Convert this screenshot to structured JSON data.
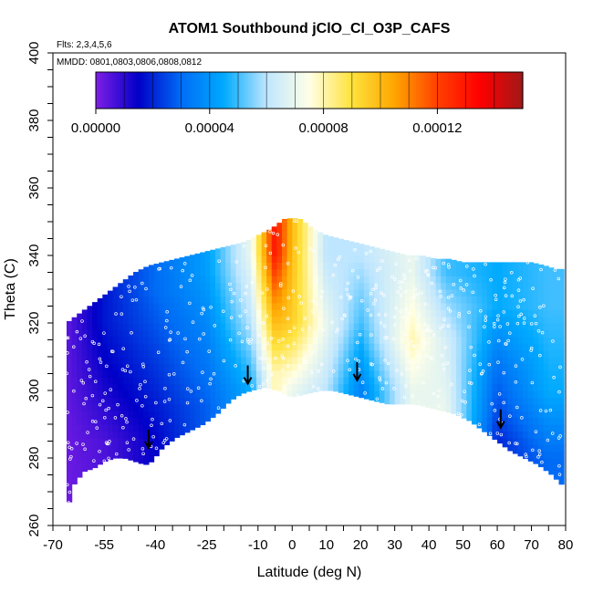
{
  "chart_data": {
    "type": "heatmap",
    "title": "ATOM1 Southbound jClO_Cl_O3P_CAFS",
    "annotations": [
      "Flts: 2,3,4,5,6",
      "MMDD: 0801,0803,0806,0808,0812"
    ],
    "xlabel": "Latitude (deg N)",
    "ylabel": "Theta (C)",
    "xlim": [
      -70,
      80
    ],
    "ylim": [
      260,
      400
    ],
    "xticks": [
      -70,
      -55,
      -40,
      -25,
      -10,
      0,
      10,
      20,
      30,
      40,
      50,
      60,
      70,
      80
    ],
    "xtick_labels": [
      "-70",
      "-55",
      "-40",
      "-25",
      "-10",
      "0",
      "10",
      "20",
      "30",
      "40",
      "50",
      "60",
      "70",
      "80"
    ],
    "yticks": [
      260,
      280,
      300,
      320,
      340,
      360,
      380,
      400
    ],
    "ytick_labels": [
      "260",
      "280",
      "300",
      "320",
      "340",
      "360",
      "380",
      "400"
    ],
    "colorbar": {
      "range": [
        0,
        0.00015
      ],
      "ticks": [
        0,
        4e-05,
        8e-05,
        0.00012
      ],
      "tick_labels": [
        "0.00000",
        "0.00004",
        "0.00008",
        "0.00012"
      ],
      "colors": [
        "#7f1fe6",
        "#0000c8",
        "#006cf5",
        "#00aaff",
        "#bfe6ff",
        "#ffffe6",
        "#ffe23c",
        "#ffa500",
        "#ff4000",
        "#ff0000",
        "#a01818"
      ]
    },
    "lower_boundary": [
      [
        -66,
        264
      ],
      [
        -64,
        272
      ],
      [
        -61,
        276
      ],
      [
        -58,
        277
      ],
      [
        -55,
        279
      ],
      [
        -52,
        280
      ],
      [
        -49,
        280
      ],
      [
        -46,
        279
      ],
      [
        -43,
        278
      ],
      [
        -41,
        279
      ],
      [
        -38,
        283
      ],
      [
        -34,
        286
      ],
      [
        -30,
        288
      ],
      [
        -26,
        290
      ],
      [
        -22,
        293
      ],
      [
        -18,
        297
      ],
      [
        -15,
        299
      ],
      [
        -12,
        300
      ],
      [
        -8,
        301
      ],
      [
        -4,
        300
      ],
      [
        0,
        298
      ],
      [
        4,
        299
      ],
      [
        8,
        300
      ],
      [
        12,
        300
      ],
      [
        16,
        299
      ],
      [
        20,
        298
      ],
      [
        24,
        297
      ],
      [
        28,
        296
      ],
      [
        32,
        296
      ],
      [
        36,
        296
      ],
      [
        40,
        295
      ],
      [
        44,
        294
      ],
      [
        48,
        293
      ],
      [
        52,
        291
      ],
      [
        56,
        288
      ],
      [
        60,
        285
      ],
      [
        64,
        282
      ],
      [
        68,
        280
      ],
      [
        72,
        278
      ],
      [
        76,
        275
      ],
      [
        79,
        272
      ]
    ],
    "upper_boundary": [
      [
        -66,
        320
      ],
      [
        -62,
        323
      ],
      [
        -58,
        326
      ],
      [
        -54,
        329
      ],
      [
        -50,
        332
      ],
      [
        -46,
        335
      ],
      [
        -42,
        337
      ],
      [
        -38,
        338
      ],
      [
        -34,
        339
      ],
      [
        -30,
        340
      ],
      [
        -26,
        341
      ],
      [
        -22,
        342
      ],
      [
        -18,
        343
      ],
      [
        -14,
        344
      ],
      [
        -10,
        346
      ],
      [
        -6,
        348
      ],
      [
        -2,
        351
      ],
      [
        2,
        351
      ],
      [
        6,
        348
      ],
      [
        10,
        346
      ],
      [
        14,
        345
      ],
      [
        18,
        344
      ],
      [
        22,
        343
      ],
      [
        26,
        342
      ],
      [
        30,
        341
      ],
      [
        34,
        340
      ],
      [
        38,
        340
      ],
      [
        42,
        339
      ],
      [
        46,
        339
      ],
      [
        50,
        338
      ],
      [
        54,
        338
      ],
      [
        58,
        338
      ],
      [
        62,
        338
      ],
      [
        66,
        338
      ],
      [
        70,
        338
      ],
      [
        74,
        337
      ],
      [
        77,
        336
      ]
    ],
    "value_field": [
      {
        "lat": -66,
        "theta": [
          [
            270,
            2e-06
          ],
          [
            290,
            3e-06
          ],
          [
            310,
            4e-06
          ]
        ]
      },
      {
        "lat": -55,
        "theta": [
          [
            285,
            6e-06
          ],
          [
            300,
            1.2e-05
          ],
          [
            320,
            1.8e-05
          ]
        ]
      },
      {
        "lat": -40,
        "theta": [
          [
            285,
            1.5e-05
          ],
          [
            300,
            2e-05
          ],
          [
            330,
            3e-05
          ]
        ]
      },
      {
        "lat": -25,
        "theta": [
          [
            295,
            2.8e-05
          ],
          [
            315,
            3.5e-05
          ],
          [
            335,
            4.2e-05
          ]
        ]
      },
      {
        "lat": -12,
        "theta": [
          [
            300,
            4.5e-05
          ],
          [
            320,
            6e-05
          ],
          [
            340,
            7e-05
          ]
        ]
      },
      {
        "lat": -5,
        "theta": [
          [
            305,
            8e-05
          ],
          [
            320,
            0.0001
          ],
          [
            341,
            0.00013
          ]
        ]
      },
      {
        "lat": 0,
        "theta": [
          [
            300,
            7e-05
          ],
          [
            320,
            9.5e-05
          ],
          [
            345,
            0.0001
          ]
        ]
      },
      {
        "lat": 10,
        "theta": [
          [
            300,
            6e-05
          ],
          [
            320,
            7e-05
          ],
          [
            340,
            6e-05
          ]
        ]
      },
      {
        "lat": 20,
        "theta": [
          [
            300,
            3.5e-05
          ],
          [
            320,
            5e-05
          ],
          [
            340,
            6e-05
          ]
        ]
      },
      {
        "lat": 35,
        "theta": [
          [
            300,
            7e-05
          ],
          [
            315,
            8e-05
          ],
          [
            335,
            7e-05
          ]
        ]
      },
      {
        "lat": 45,
        "theta": [
          [
            295,
            7e-05
          ],
          [
            315,
            6.5e-05
          ],
          [
            335,
            5e-05
          ]
        ]
      },
      {
        "lat": 60,
        "theta": [
          [
            285,
            2e-05
          ],
          [
            305,
            3e-05
          ],
          [
            325,
            4.5e-05
          ]
        ]
      },
      {
        "lat": 75,
        "theta": [
          [
            280,
            3e-05
          ],
          [
            300,
            4.5e-05
          ],
          [
            325,
            5e-05
          ]
        ]
      }
    ],
    "arrows": [
      [
        -42,
        283
      ],
      [
        -13,
        302
      ],
      [
        19,
        303
      ],
      [
        61,
        289
      ]
    ],
    "grid": false,
    "legend": "colorbar-top"
  }
}
